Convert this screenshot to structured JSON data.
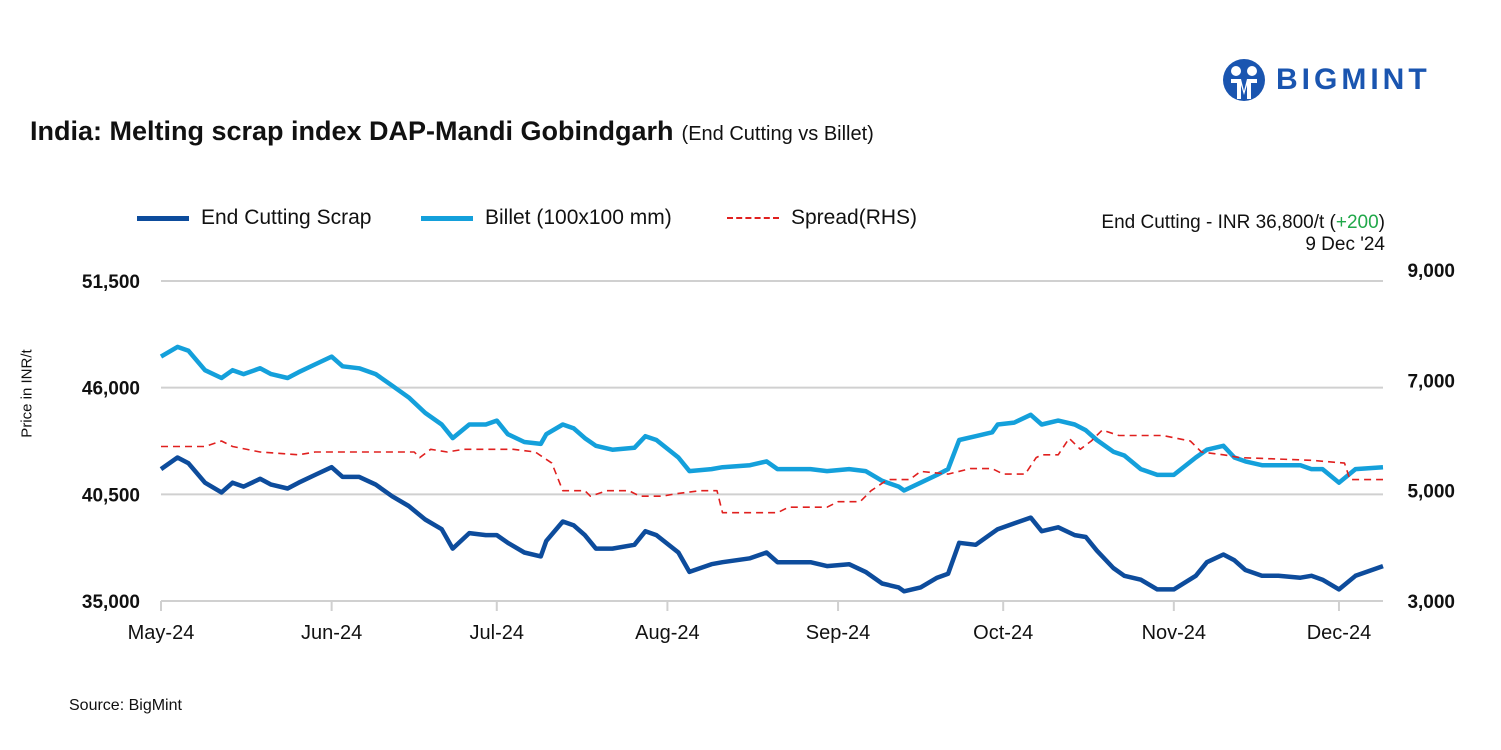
{
  "brand": {
    "name": "BIGMINT",
    "color": "#1a55b0",
    "icon": "bigmint-people-logo"
  },
  "header": {
    "title": "India: Melting scrap index DAP-Mandi Gobindgarh",
    "subtitle": "(End Cutting vs Billet)"
  },
  "annotation": {
    "prefix": "End Cutting - INR 36,800/t (",
    "change": "+200",
    "suffix": ")",
    "date": "9 Dec '24",
    "change_color": "#21a84a"
  },
  "footer": {
    "source": "Source: BigMint"
  },
  "chart_data": {
    "type": "line",
    "title": "India: Melting scrap index DAP-Mandi Gobindgarh",
    "subtitle": "(End Cutting vs Billet)",
    "ylabel": "Price in INR/t",
    "ylim": [
      35000,
      51500
    ],
    "y_ticks": [
      "51,500",
      "46,000",
      "40,500",
      "35,000"
    ],
    "y_tick_values": [
      51500,
      46000,
      40500,
      35000
    ],
    "y2lim": [
      3000,
      9000
    ],
    "y2_ticks": [
      "9,000",
      "7,000",
      "5,000",
      "3,000"
    ],
    "y2_tick_values": [
      9000,
      7000,
      5000,
      3000
    ],
    "xlim": [
      "2024-05-01",
      "2024-12-09"
    ],
    "x_ticks": [
      "May-24",
      "Jun-24",
      "Jul-24",
      "Aug-24",
      "Sep-24",
      "Oct-24",
      "Nov-24",
      "Dec-24"
    ],
    "x_tick_dates": [
      "2024-05-01",
      "2024-06-01",
      "2024-07-01",
      "2024-08-01",
      "2024-09-01",
      "2024-10-01",
      "2024-11-01",
      "2024-12-01"
    ],
    "grid": "horizontal",
    "legend": "top-left",
    "x": [
      "2024-05-01",
      "2024-05-04",
      "2024-05-06",
      "2024-05-09",
      "2024-05-12",
      "2024-05-14",
      "2024-05-16",
      "2024-05-19",
      "2024-05-21",
      "2024-05-24",
      "2024-05-26",
      "2024-05-29",
      "2024-06-01",
      "2024-06-03",
      "2024-06-06",
      "2024-06-09",
      "2024-06-12",
      "2024-06-15",
      "2024-06-18",
      "2024-06-21",
      "2024-06-23",
      "2024-06-26",
      "2024-06-29",
      "2024-07-01",
      "2024-07-03",
      "2024-07-06",
      "2024-07-09",
      "2024-07-10",
      "2024-07-13",
      "2024-07-15",
      "2024-07-17",
      "2024-07-19",
      "2024-07-22",
      "2024-07-26",
      "2024-07-28",
      "2024-07-30",
      "2024-08-03",
      "2024-08-05",
      "2024-08-09",
      "2024-08-11",
      "2024-08-16",
      "2024-08-19",
      "2024-08-21",
      "2024-08-24",
      "2024-08-27",
      "2024-08-30",
      "2024-09-03",
      "2024-09-06",
      "2024-09-09",
      "2024-09-12",
      "2024-09-13",
      "2024-09-16",
      "2024-09-19",
      "2024-09-21",
      "2024-09-23",
      "2024-09-26",
      "2024-09-29",
      "2024-09-30",
      "2024-10-03",
      "2024-10-06",
      "2024-10-08",
      "2024-10-11",
      "2024-10-14",
      "2024-10-16",
      "2024-10-18",
      "2024-10-21",
      "2024-10-23",
      "2024-10-26",
      "2024-10-29",
      "2024-11-01",
      "2024-11-05",
      "2024-11-07",
      "2024-11-10",
      "2024-11-12",
      "2024-11-14",
      "2024-11-17",
      "2024-11-20",
      "2024-11-24",
      "2024-11-26",
      "2024-11-28",
      "2024-12-01",
      "2024-12-04",
      "2024-12-09"
    ],
    "series": [
      {
        "name": "End Cutting Scrap",
        "axis": "left",
        "color": "#0d4c9c",
        "style": "solid",
        "values": [
          41800,
          42400,
          42100,
          41100,
          40600,
          41100,
          40900,
          41300,
          41000,
          40800,
          41100,
          41500,
          41900,
          41400,
          41400,
          41000,
          40400,
          39900,
          39200,
          38700,
          37700,
          38500,
          38400,
          38400,
          38000,
          37500,
          37300,
          38100,
          39100,
          38900,
          38400,
          37700,
          37700,
          37900,
          38600,
          38400,
          37500,
          36500,
          36900,
          37000,
          37200,
          37500,
          37000,
          37000,
          37000,
          36800,
          36900,
          36500,
          35900,
          35700,
          35500,
          35700,
          36200,
          36400,
          38000,
          37900,
          38500,
          38700,
          39000,
          39300,
          38600,
          38800,
          38400,
          38300,
          37600,
          36700,
          36300,
          36100,
          35600,
          35600,
          36300,
          37000,
          37400,
          37100,
          36600,
          36300,
          36300,
          36200,
          36300,
          36100,
          35600,
          36300,
          36800
        ]
      },
      {
        "name": "Billet (100x100 mm)",
        "axis": "left",
        "color": "#14a0db",
        "style": "solid",
        "values": [
          47600,
          48100,
          47900,
          46900,
          46500,
          46900,
          46700,
          47000,
          46700,
          46500,
          46800,
          47200,
          47600,
          47100,
          47000,
          46700,
          46100,
          45500,
          44700,
          44100,
          43400,
          44100,
          44100,
          44300,
          43600,
          43200,
          43100,
          43600,
          44100,
          43900,
          43400,
          43000,
          42800,
          42900,
          43500,
          43300,
          42400,
          41700,
          41800,
          41900,
          42000,
          42200,
          41800,
          41800,
          41800,
          41700,
          41800,
          41700,
          41200,
          40900,
          40700,
          41100,
          41500,
          41800,
          43300,
          43500,
          43700,
          44100,
          44200,
          44600,
          44100,
          44300,
          44100,
          43800,
          43300,
          42700,
          42500,
          41800,
          41500,
          41500,
          42400,
          42800,
          43000,
          42400,
          42200,
          42000,
          42000,
          42000,
          41800,
          41800,
          41100,
          41800,
          41900
        ]
      },
      {
        "name": "Spread(RHS)",
        "axis": "right",
        "color": "#e0201f",
        "style": "dashed",
        "x": [
          "2024-05-01",
          "2024-05-09",
          "2024-05-12",
          "2024-05-14",
          "2024-05-19",
          "2024-05-26",
          "2024-05-29",
          "2024-06-16",
          "2024-06-17",
          "2024-06-19",
          "2024-06-22",
          "2024-06-25",
          "2024-07-04",
          "2024-07-08",
          "2024-07-11",
          "2024-07-13",
          "2024-07-17",
          "2024-07-18",
          "2024-07-21",
          "2024-07-25",
          "2024-07-27",
          "2024-07-31",
          "2024-08-03",
          "2024-08-07",
          "2024-08-10",
          "2024-08-11",
          "2024-08-21",
          "2024-08-23",
          "2024-08-30",
          "2024-09-01",
          "2024-09-05",
          "2024-09-07",
          "2024-09-10",
          "2024-09-14",
          "2024-09-16",
          "2024-09-21",
          "2024-09-25",
          "2024-09-29",
          "2024-10-01",
          "2024-10-05",
          "2024-10-07",
          "2024-10-08",
          "2024-10-11",
          "2024-10-13",
          "2024-10-15",
          "2024-10-17",
          "2024-10-19",
          "2024-10-22",
          "2024-10-30",
          "2024-11-04",
          "2024-11-06",
          "2024-11-10",
          "2024-11-13",
          "2024-11-26",
          "2024-12-02",
          "2024-12-03",
          "2024-12-09"
        ],
        "values": [
          5800,
          5800,
          5900,
          5800,
          5700,
          5650,
          5700,
          5700,
          5600,
          5750,
          5700,
          5750,
          5750,
          5700,
          5500,
          5000,
          5000,
          4900,
          5000,
          5000,
          4900,
          4900,
          4950,
          5000,
          5000,
          4600,
          4600,
          4700,
          4700,
          4800,
          4800,
          5000,
          5200,
          5200,
          5350,
          5300,
          5400,
          5400,
          5300,
          5300,
          5600,
          5650,
          5650,
          5950,
          5750,
          5900,
          6100,
          6000,
          6000,
          5900,
          5700,
          5650,
          5600,
          5550,
          5500,
          5200,
          5200
        ]
      }
    ]
  }
}
